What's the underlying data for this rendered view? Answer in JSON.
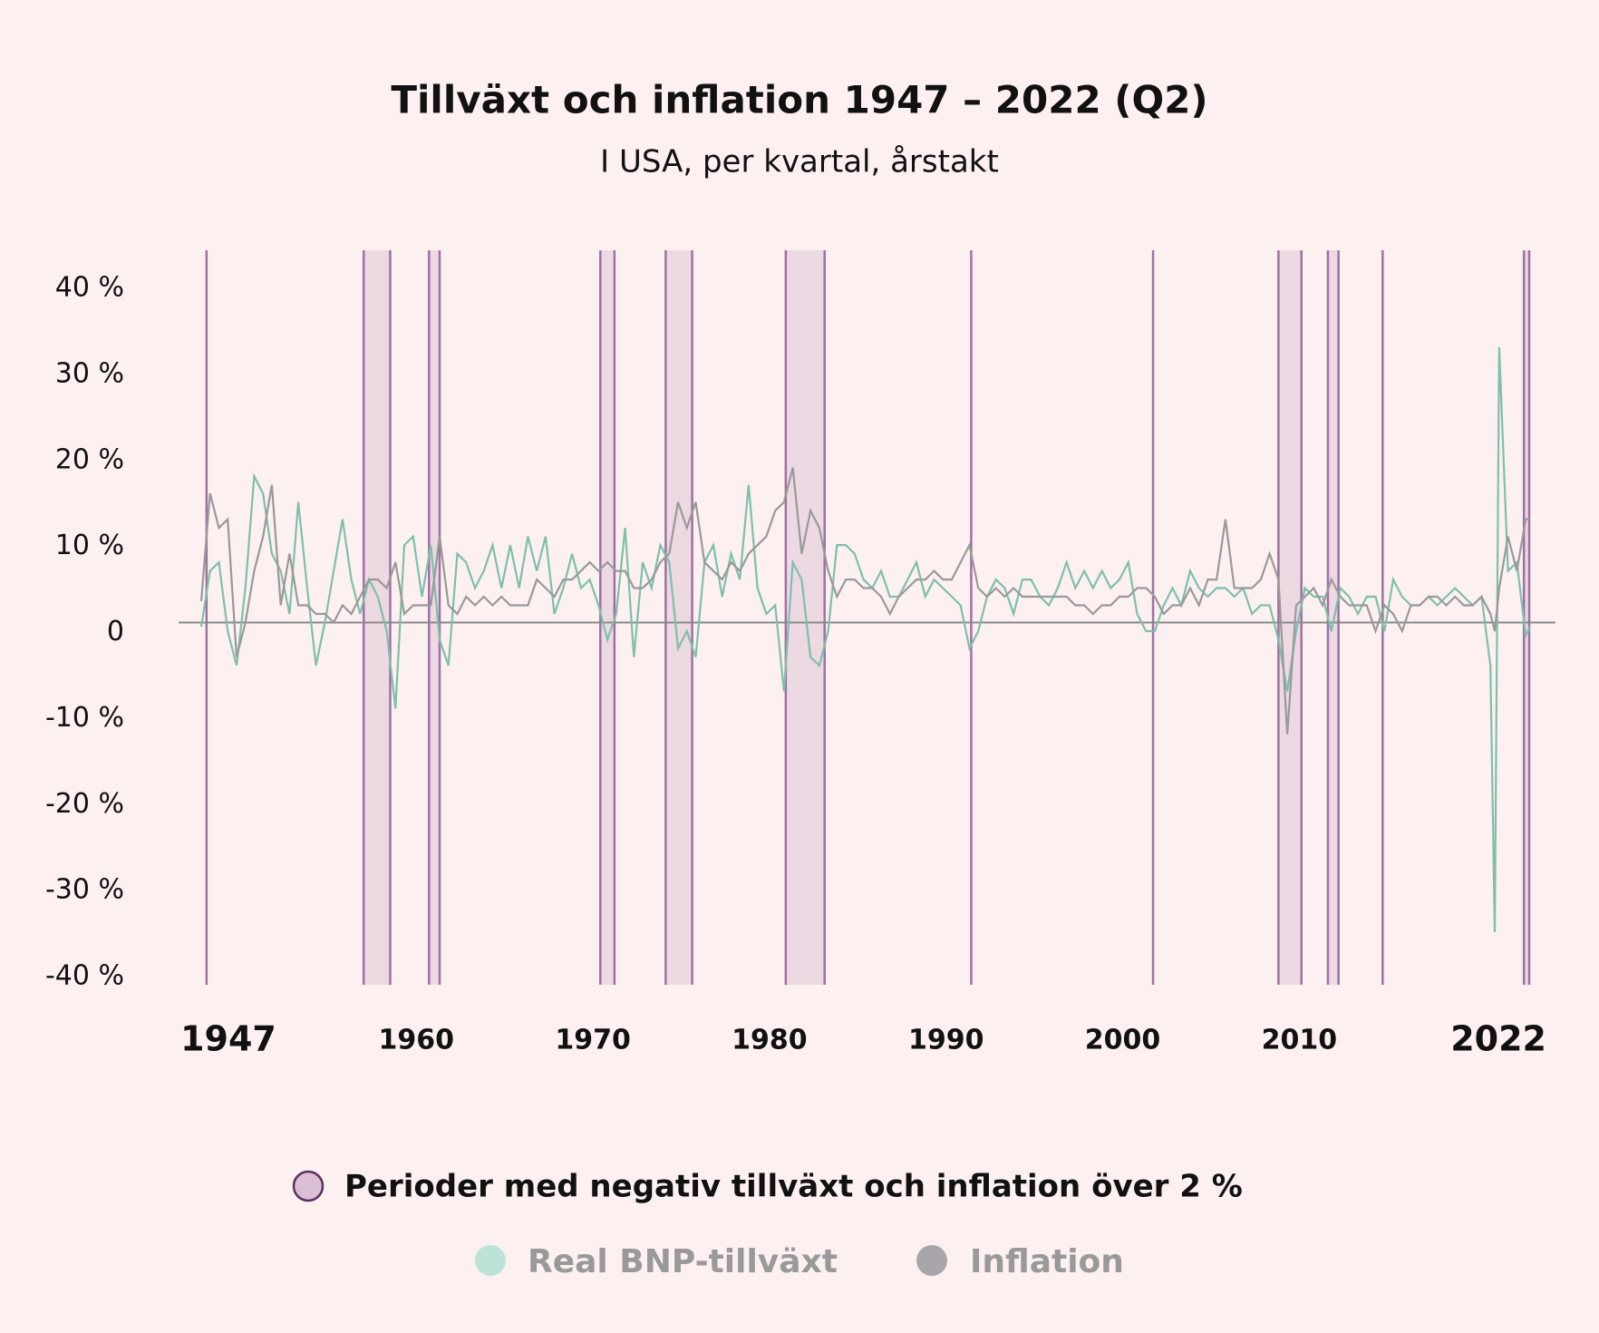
{
  "chart_data": {
    "type": "line",
    "title": "Tillväxt och inflation 1947 – 2022 (Q2)",
    "subtitle": "I USA, per kvartal, årstakt",
    "period_label": "Perioder med negativ tillväxt och inflation över 2 %",
    "period_color": "#a070a4",
    "periods": [
      [
        1947.3,
        1947.3
      ],
      [
        1956.2,
        1957.7
      ],
      [
        1959.9,
        1960.5
      ],
      [
        1969.6,
        1970.4
      ],
      [
        1973.3,
        1974.8
      ],
      [
        1980.1,
        1982.3
      ],
      [
        1990.6,
        1990.6
      ],
      [
        2000.9,
        2000.9
      ],
      [
        2008.0,
        2009.3
      ],
      [
        2010.8,
        2011.4
      ],
      [
        2013.9,
        2013.9
      ],
      [
        2021.9,
        2022.2
      ]
    ],
    "x": [
      1947.0,
      1947.5,
      1948.0,
      1948.5,
      1949.0,
      1949.5,
      1950.0,
      1950.5,
      1951.0,
      1951.5,
      1952.0,
      1952.5,
      1953.0,
      1953.5,
      1954.0,
      1954.5,
      1955.0,
      1955.5,
      1956.0,
      1956.5,
      1957.0,
      1957.5,
      1958.0,
      1958.5,
      1959.0,
      1959.5,
      1960.0,
      1960.5,
      1961.0,
      1961.5,
      1962.0,
      1962.5,
      1963.0,
      1963.5,
      1964.0,
      1964.5,
      1965.0,
      1965.5,
      1966.0,
      1966.5,
      1967.0,
      1967.5,
      1968.0,
      1968.5,
      1969.0,
      1969.5,
      1970.0,
      1970.5,
      1971.0,
      1971.5,
      1972.0,
      1972.5,
      1973.0,
      1973.5,
      1974.0,
      1974.5,
      1975.0,
      1975.5,
      1976.0,
      1976.5,
      1977.0,
      1977.5,
      1978.0,
      1978.5,
      1979.0,
      1979.5,
      1980.0,
      1980.5,
      1981.0,
      1981.5,
      1982.0,
      1982.5,
      1983.0,
      1983.5,
      1984.0,
      1984.5,
      1985.0,
      1985.5,
      1986.0,
      1986.5,
      1987.0,
      1987.5,
      1988.0,
      1988.5,
      1989.0,
      1989.5,
      1990.0,
      1990.5,
      1991.0,
      1991.5,
      1992.0,
      1992.5,
      1993.0,
      1993.5,
      1994.0,
      1994.5,
      1995.0,
      1995.5,
      1996.0,
      1996.5,
      1997.0,
      1997.5,
      1998.0,
      1998.5,
      1999.0,
      1999.5,
      2000.0,
      2000.5,
      2001.0,
      2001.5,
      2002.0,
      2002.5,
      2003.0,
      2003.5,
      2004.0,
      2004.5,
      2005.0,
      2005.5,
      2006.0,
      2006.5,
      2007.0,
      2007.5,
      2008.0,
      2008.5,
      2009.0,
      2009.5,
      2010.0,
      2010.5,
      2011.0,
      2011.5,
      2012.0,
      2012.5,
      2013.0,
      2013.5,
      2014.0,
      2014.5,
      2015.0,
      2015.5,
      2016.0,
      2016.5,
      2017.0,
      2017.5,
      2018.0,
      2018.5,
      2019.0,
      2019.5,
      2020.0,
      2020.25,
      2020.5,
      2021.0,
      2021.5,
      2022.0,
      2022.25
    ],
    "series": [
      {
        "name": "Real BNP-tillväxt",
        "color": "#7fbfaa",
        "legend_color": "#bde3d8",
        "values": [
          -0.5,
          6,
          7,
          -1,
          -5,
          4,
          17,
          15,
          8,
          6,
          1,
          14,
          4,
          -5,
          0,
          6,
          12,
          5,
          1,
          5,
          3,
          -1,
          -10,
          9,
          10,
          3,
          9,
          -2,
          -5,
          8,
          7,
          4,
          6,
          9,
          4,
          9,
          4,
          10,
          6,
          10,
          1,
          4,
          8,
          4,
          5,
          2,
          -2,
          1,
          11,
          -4,
          7,
          4,
          9,
          7,
          -3,
          -1,
          -4,
          7,
          9,
          3,
          8,
          5,
          16,
          4,
          1,
          2,
          -8,
          7,
          5,
          -4,
          -5,
          -1,
          9,
          9,
          8,
          5,
          4,
          6,
          3,
          3,
          5,
          7,
          3,
          5,
          4,
          3,
          2,
          -3,
          -1,
          3,
          5,
          4,
          1,
          5,
          5,
          3,
          2,
          4,
          7,
          4,
          6,
          4,
          6,
          4,
          5,
          7,
          1,
          -1,
          -1,
          2,
          4,
          2,
          6,
          4,
          3,
          4,
          4,
          3,
          4,
          1,
          2,
          2,
          -2,
          -8,
          -1,
          4,
          3,
          3,
          -1,
          4,
          3,
          1,
          3,
          3,
          -1,
          5,
          3,
          2,
          2,
          3,
          2,
          3,
          4,
          3,
          2,
          3,
          -5,
          -36,
          32,
          6,
          7,
          -1.5,
          -0.5
        ]
      },
      {
        "name": "Inflation",
        "color": "#999999",
        "legend_color": "#a8a6aa",
        "values": [
          2.5,
          15,
          11,
          12,
          -4,
          0,
          6,
          10,
          16,
          2,
          8,
          2,
          2,
          1,
          1,
          0,
          2,
          1,
          3,
          5,
          5,
          4,
          7,
          1,
          2,
          2,
          2,
          10,
          2,
          1,
          3,
          2,
          3,
          2,
          3,
          2,
          2,
          2,
          5,
          4,
          3,
          5,
          5,
          6,
          7,
          6,
          7,
          6,
          6,
          4,
          4,
          5,
          7,
          8,
          14,
          11,
          14,
          7,
          6,
          5,
          7,
          6,
          8,
          9,
          10,
          13,
          14,
          18,
          8,
          13,
          11,
          6,
          3,
          5,
          5,
          4,
          4,
          3,
          1,
          3,
          4,
          5,
          5,
          6,
          5,
          5,
          7,
          9,
          4,
          3,
          4,
          3,
          4,
          3,
          3,
          3,
          3,
          3,
          3,
          2,
          2,
          1,
          2,
          2,
          3,
          3,
          4,
          4,
          3,
          1,
          2,
          2,
          4,
          2,
          5,
          5,
          12,
          4,
          4,
          4,
          5,
          8,
          5,
          -13,
          2,
          3,
          4,
          2,
          5,
          3,
          2,
          2,
          2,
          -1,
          2,
          1,
          -1,
          2,
          2,
          3,
          3,
          2,
          3,
          2,
          2,
          3,
          1,
          -1,
          4,
          10,
          6,
          12,
          12
        ]
      }
    ],
    "xlim": [
      1947,
      2022.25
    ],
    "xticks": [
      1947,
      1960,
      1970,
      1980,
      1990,
      2000,
      2010,
      2022
    ],
    "ylim": [
      -40,
      40
    ],
    "yticks": [
      {
        "value": 40,
        "label": "40 %"
      },
      {
        "value": 30,
        "label": "30 %"
      },
      {
        "value": 20,
        "label": "20 %"
      },
      {
        "value": 10,
        "label": "10 %"
      },
      0,
      {
        "value": -10,
        "label": "-10 %"
      },
      {
        "value": -20,
        "label": "-20 %"
      },
      {
        "value": -30,
        "label": "-30 %"
      },
      {
        "value": -40,
        "label": "-40 %"
      }
    ]
  }
}
